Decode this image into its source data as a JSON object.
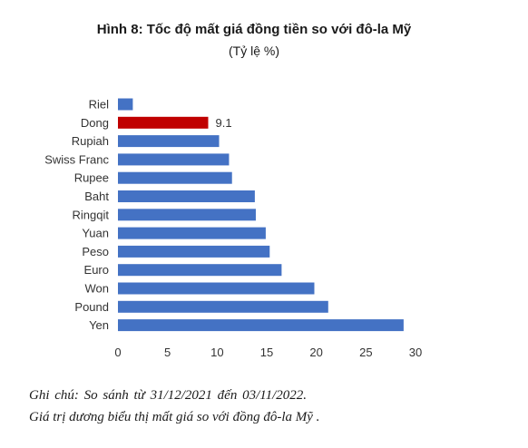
{
  "chart_data": {
    "type": "bar",
    "orientation": "horizontal",
    "title": "Hình 8: Tốc độ mất giá đồng tiền so với đô-la Mỹ",
    "subtitle": "(Tỷ lệ %)",
    "categories": [
      "Riel",
      "Dong",
      "Rupiah",
      "Swiss Franc",
      "Rupee",
      "Baht",
      "Ringqit",
      "Yuan",
      "Peso",
      "Euro",
      "Won",
      "Pound",
      "Yen"
    ],
    "values": [
      1.5,
      9.1,
      10.2,
      11.2,
      11.5,
      13.8,
      13.9,
      14.9,
      15.3,
      16.5,
      19.8,
      21.2,
      28.8
    ],
    "data_labels": [
      {
        "category": "Dong",
        "text": "9.1"
      }
    ],
    "highlight_category": "Dong",
    "xlim": [
      0,
      30
    ],
    "xticks": [
      "0",
      "5",
      "10",
      "15",
      "20",
      "25",
      "30"
    ],
    "grid": false,
    "legend": "none"
  },
  "colors": {
    "bar": "#4472C4",
    "highlight": "#C00000"
  },
  "notes": {
    "line1": "Ghi chú: So sánh từ 31/12/2021 đến 03/11/2022.",
    "line2": "Giá trị dương biểu thị mất giá so với đồng đô-la Mỹ ."
  }
}
